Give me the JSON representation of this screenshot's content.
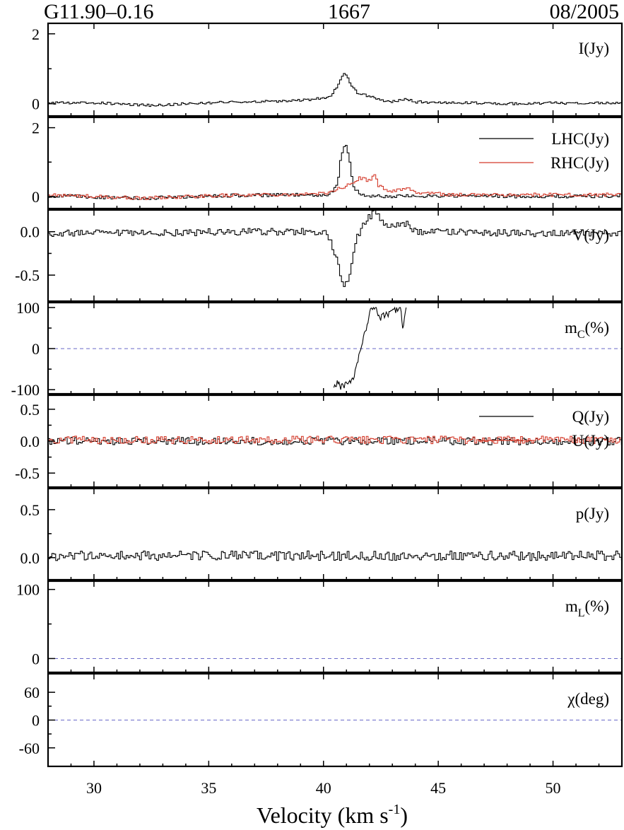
{
  "header": {
    "source": "G11.90–0.16",
    "frequency": "1667",
    "epoch": "08/2005"
  },
  "chart_data": {
    "type": "line",
    "style": "stepped spectra, stacked panels sharing a velocity axis",
    "xlabel": "Velocity (km s",
    "xlabel_sup": "-1",
    "xlabel_close": ")",
    "xlim": [
      28,
      53
    ],
    "xticks": [
      30,
      35,
      40,
      45,
      50
    ],
    "xtick_labels": [
      "30",
      "35",
      "40",
      "45",
      "50"
    ],
    "colors": {
      "primary": "#000000",
      "secondary": "#d43a2a",
      "zero_line": "#6a6ac8"
    },
    "panels": [
      {
        "id": "I",
        "label": "I(Jy)",
        "sub": "",
        "label_tail": "",
        "ylim": [
          -0.35,
          2.3
        ],
        "yticks": [
          0,
          2
        ],
        "ytick_labels": [
          "0",
          "2"
        ],
        "zero_line": false,
        "series": [
          {
            "name": "",
            "color": "#000000",
            "kind": "step",
            "points": [
              [
                28.0,
                0.02
              ],
              [
                30.0,
                0.03
              ],
              [
                32.5,
                -0.05
              ],
              [
                34.0,
                0.0
              ],
              [
                36.0,
                0.05
              ],
              [
                38.0,
                0.07
              ],
              [
                39.5,
                0.12
              ],
              [
                40.3,
                0.2
              ],
              [
                40.6,
                0.5
              ],
              [
                40.85,
                0.85
              ],
              [
                41.0,
                0.82
              ],
              [
                41.2,
                0.55
              ],
              [
                41.5,
                0.3
              ],
              [
                41.8,
                0.25
              ],
              [
                42.1,
                0.2
              ],
              [
                42.5,
                0.1
              ],
              [
                43.0,
                0.05
              ],
              [
                43.6,
                0.15
              ],
              [
                44.0,
                0.05
              ],
              [
                46.0,
                0.03
              ],
              [
                48.0,
                0.0
              ],
              [
                50.0,
                0.02
              ],
              [
                53.0,
                0.02
              ]
            ],
            "noise": 0.035
          }
        ],
        "legend": []
      },
      {
        "id": "LR",
        "label": "",
        "sub": "",
        "label_tail": "",
        "ylim": [
          -0.35,
          2.3
        ],
        "yticks": [
          0,
          2
        ],
        "ytick_labels": [
          "0",
          "2"
        ],
        "zero_line": false,
        "series": [
          {
            "name": "LHC(Jy)",
            "color": "#000000",
            "kind": "step",
            "points": [
              [
                28.0,
                0.02
              ],
              [
                32.0,
                -0.05
              ],
              [
                36.0,
                0.03
              ],
              [
                40.2,
                0.05
              ],
              [
                40.6,
                0.3
              ],
              [
                40.75,
                1.1
              ],
              [
                40.95,
                1.6
              ],
              [
                41.1,
                1.2
              ],
              [
                41.3,
                0.3
              ],
              [
                41.6,
                0.05
              ],
              [
                42.5,
                0.0
              ],
              [
                45.0,
                0.02
              ],
              [
                50.0,
                0.0
              ],
              [
                53.0,
                0.02
              ]
            ],
            "noise": 0.05
          },
          {
            "name": "RHC(Jy)",
            "color": "#d43a2a",
            "kind": "step",
            "points": [
              [
                28.0,
                0.05
              ],
              [
                32.0,
                -0.05
              ],
              [
                36.0,
                0.04
              ],
              [
                40.0,
                0.08
              ],
              [
                41.2,
                0.35
              ],
              [
                41.6,
                0.55
              ],
              [
                42.0,
                0.45
              ],
              [
                42.25,
                0.7
              ],
              [
                42.4,
                0.3
              ],
              [
                43.0,
                0.15
              ],
              [
                43.6,
                0.25
              ],
              [
                44.2,
                0.1
              ],
              [
                46.0,
                0.05
              ],
              [
                50.0,
                0.05
              ],
              [
                53.0,
                0.05
              ]
            ],
            "noise": 0.05
          }
        ],
        "legend": [
          "LHC(Jy)",
          "RHC(Jy)"
        ]
      },
      {
        "id": "V",
        "label": "V(Jy)",
        "sub": "",
        "label_tail": "",
        "ylim": [
          -0.8,
          0.25
        ],
        "yticks": [
          0.0,
          -0.5
        ],
        "ytick_labels": [
          "0.0",
          "-0.5"
        ],
        "zero_line": false,
        "series": [
          {
            "name": "",
            "color": "#000000",
            "kind": "step",
            "points": [
              [
                28.0,
                -0.02
              ],
              [
                32.0,
                -0.02
              ],
              [
                36.0,
                0.0
              ],
              [
                40.0,
                0.0
              ],
              [
                40.3,
                -0.1
              ],
              [
                40.6,
                -0.35
              ],
              [
                40.9,
                -0.65
              ],
              [
                41.05,
                -0.58
              ],
              [
                41.3,
                -0.3
              ],
              [
                41.5,
                -0.05
              ],
              [
                41.9,
                0.15
              ],
              [
                42.25,
                0.22
              ],
              [
                42.6,
                0.12
              ],
              [
                43.0,
                0.05
              ],
              [
                43.6,
                0.1
              ],
              [
                44.0,
                0.0
              ],
              [
                50.0,
                -0.02
              ],
              [
                53.0,
                -0.02
              ]
            ],
            "noise": 0.04
          }
        ],
        "legend": []
      },
      {
        "id": "mC",
        "label": "m",
        "sub": "C",
        "label_tail": "(%)",
        "ylim": [
          -110,
          112
        ],
        "yticks": [
          100,
          0,
          -100
        ],
        "ytick_labels": [
          "100",
          "0",
          "-100"
        ],
        "zero_line": true,
        "series": [
          {
            "name": "",
            "color": "#000000",
            "kind": "line",
            "points": [
              [
                40.45,
                -100
              ],
              [
                40.6,
                -80
              ],
              [
                40.75,
                -95
              ],
              [
                40.9,
                -90
              ],
              [
                41.1,
                -80
              ],
              [
                41.3,
                -70
              ],
              [
                41.5,
                -30
              ],
              [
                41.7,
                20
              ],
              [
                41.9,
                60
              ],
              [
                42.05,
                100
              ],
              [
                42.3,
                95
              ],
              [
                42.45,
                75
              ],
              [
                43.35,
                100
              ],
              [
                43.45,
                50
              ],
              [
                43.6,
                100
              ]
            ],
            "noise": 8
          }
        ],
        "legend": []
      },
      {
        "id": "QU",
        "label": "",
        "sub": "",
        "label_tail": "",
        "ylim": [
          -0.72,
          0.72
        ],
        "yticks": [
          0.5,
          0.0,
          -0.5
        ],
        "ytick_labels": [
          "0.5",
          "0.0",
          "-0.5"
        ],
        "zero_line": false,
        "series": [
          {
            "name": "Q(Jy)",
            "color": "#000000",
            "kind": "step",
            "points": [
              [
                28.0,
                0.0
              ],
              [
                53.0,
                0.0
              ]
            ],
            "noise": 0.06
          },
          {
            "name": "U(Jy)",
            "color": "#d43a2a",
            "kind": "step",
            "points": [
              [
                28.0,
                0.02
              ],
              [
                53.0,
                0.02
              ]
            ],
            "noise": 0.06
          }
        ],
        "legend": [
          "Q(Jy)",
          "U(Jy)"
        ]
      },
      {
        "id": "p",
        "label": "p(Jy)",
        "sub": "",
        "label_tail": "",
        "ylim": [
          -0.23,
          0.72
        ],
        "yticks": [
          0.5,
          0.0
        ],
        "ytick_labels": [
          "0.5",
          "0.0"
        ],
        "zero_line": false,
        "series": [
          {
            "name": "",
            "color": "#000000",
            "kind": "step",
            "points": [
              [
                28.0,
                0.02
              ],
              [
                53.0,
                0.02
              ]
            ],
            "noise": 0.05
          }
        ],
        "legend": []
      },
      {
        "id": "mL",
        "label": "m",
        "sub": "L",
        "label_tail": "(%)",
        "ylim": [
          -20,
          112
        ],
        "yticks": [
          100,
          0
        ],
        "ytick_labels": [
          "100",
          "0"
        ],
        "zero_line": true,
        "series": [],
        "legend": []
      },
      {
        "id": "chi",
        "label": "χ(deg)",
        "sub": "",
        "label_tail": "",
        "ylim": [
          -100,
          100
        ],
        "yticks": [
          60,
          0,
          -60
        ],
        "ytick_labels": [
          "60",
          "0",
          "-60"
        ],
        "zero_line": true,
        "series": [],
        "legend": []
      }
    ]
  }
}
